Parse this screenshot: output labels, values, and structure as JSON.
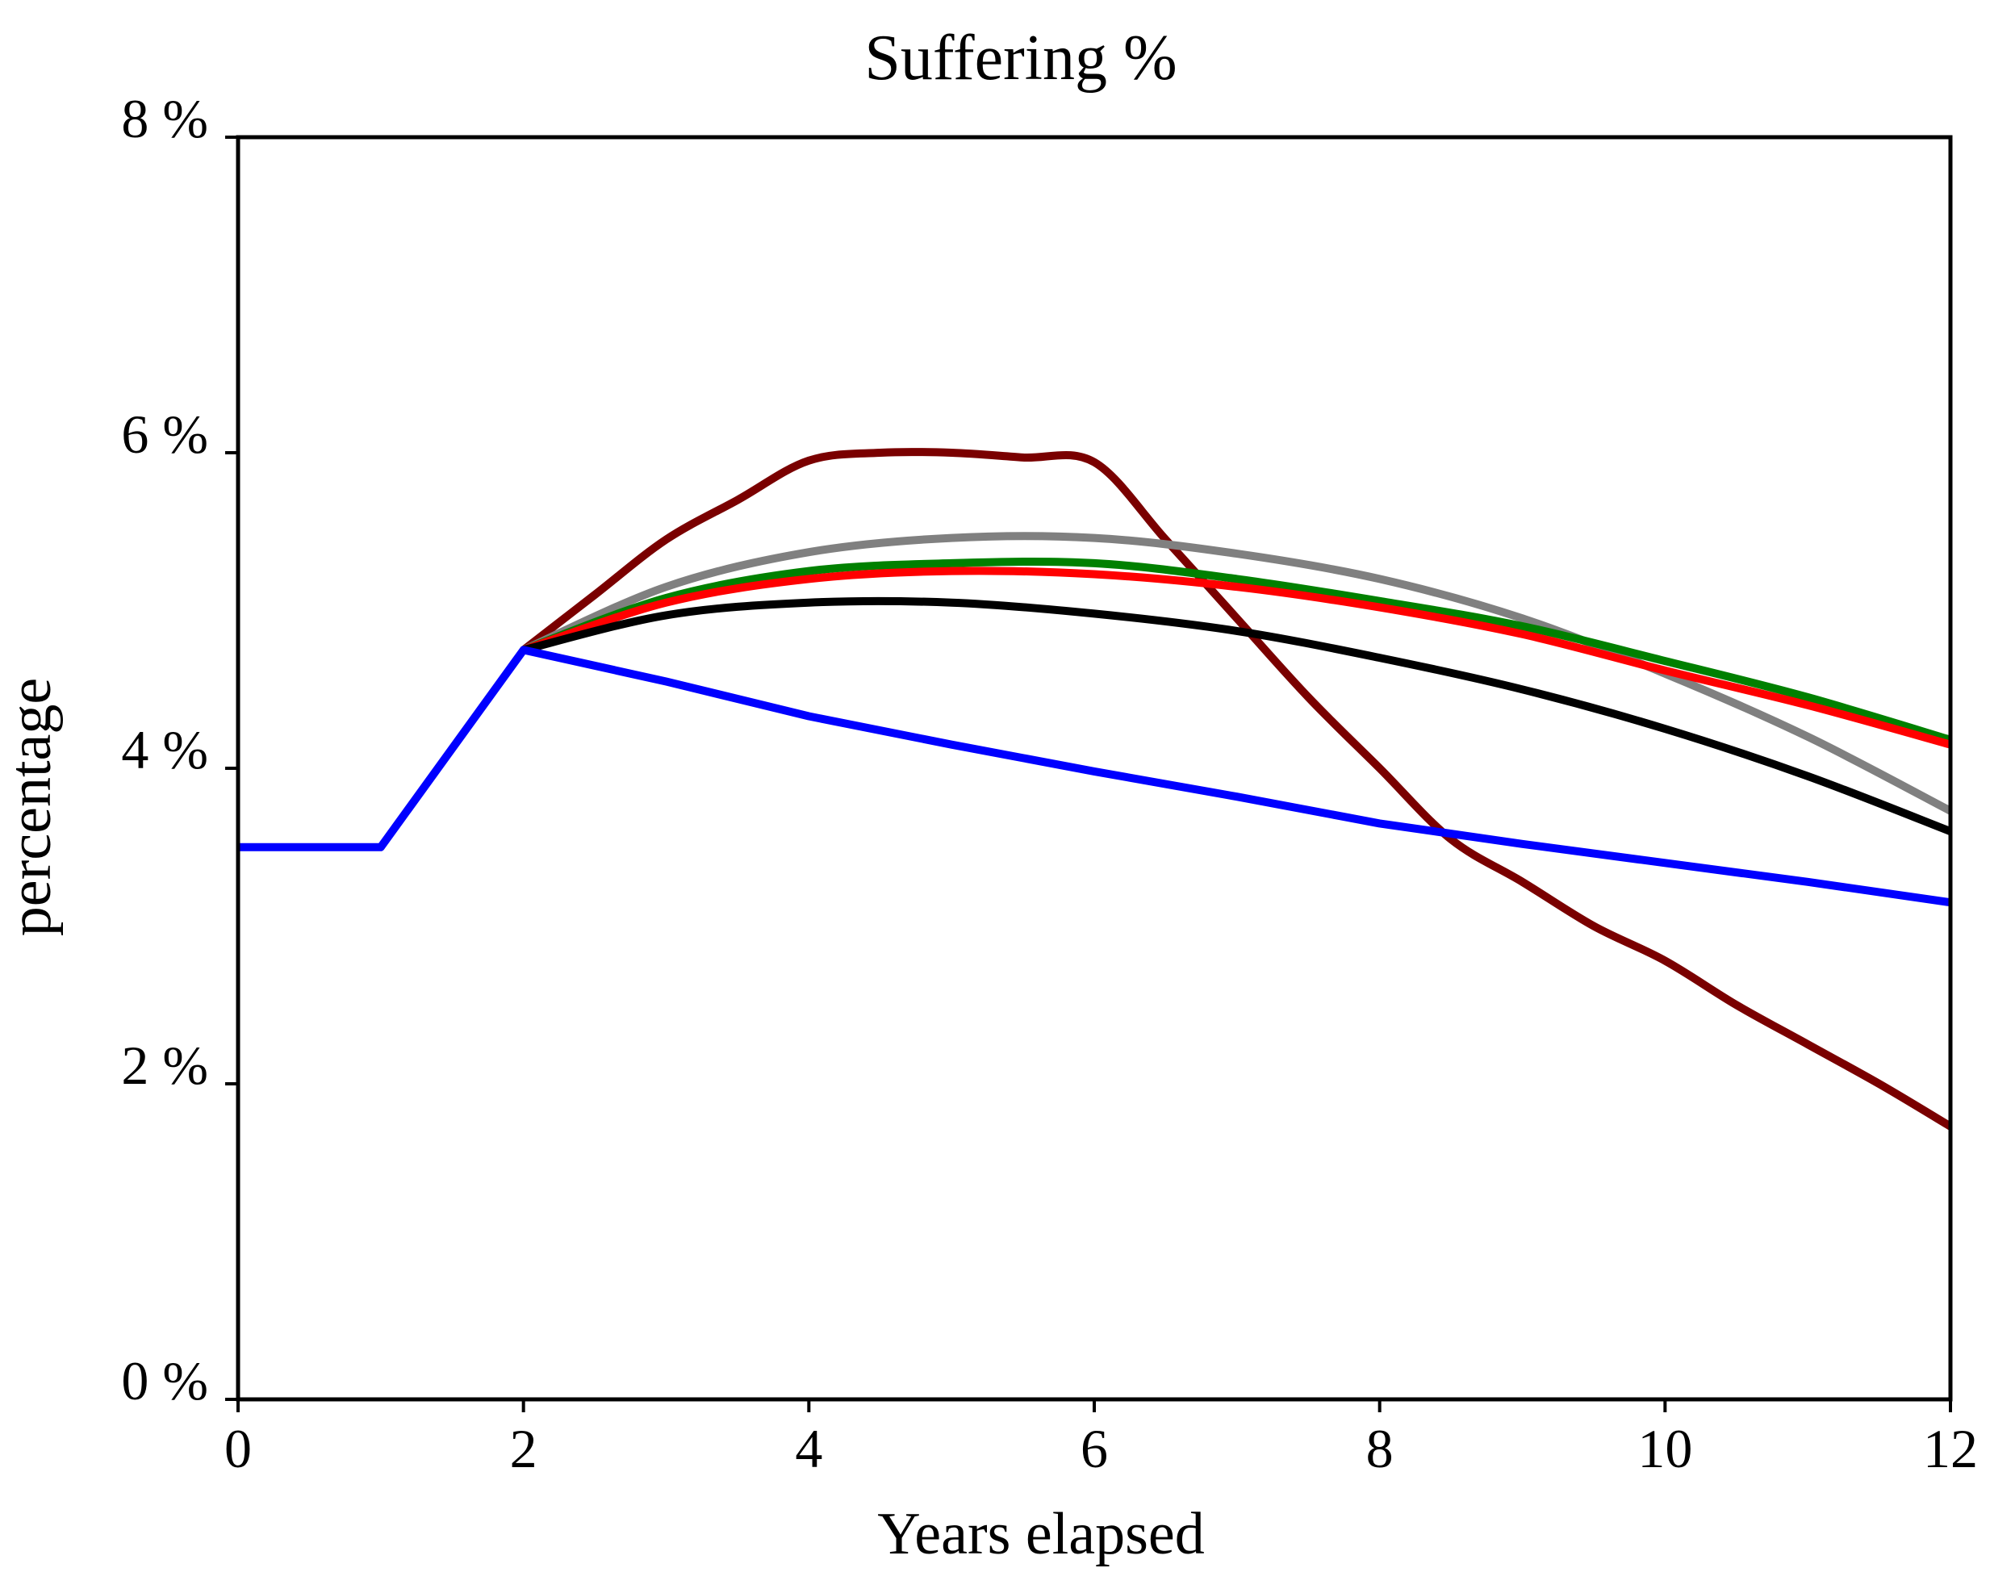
{
  "chart_data": {
    "type": "line",
    "title": "Suffering %",
    "xlabel": "Years elapsed",
    "ylabel": "percentage",
    "xlim": [
      0,
      12
    ],
    "ylim": [
      0,
      8
    ],
    "x_ticks": [
      {
        "value": 0,
        "label": "0"
      },
      {
        "value": 2,
        "label": "2"
      },
      {
        "value": 4,
        "label": "4"
      },
      {
        "value": 6,
        "label": "6"
      },
      {
        "value": 8,
        "label": "8"
      },
      {
        "value": 10,
        "label": "10"
      },
      {
        "value": 12,
        "label": "12"
      }
    ],
    "y_ticks": [
      {
        "value": 0,
        "label": "0 %"
      },
      {
        "value": 2,
        "label": "2 %"
      },
      {
        "value": 4,
        "label": "4 %"
      },
      {
        "value": 6,
        "label": "6 %"
      },
      {
        "value": 8,
        "label": "8 %"
      }
    ],
    "grid": false,
    "series": [
      {
        "name": "dark red",
        "color": "#7a0000",
        "points": [
          [
            2,
            4.75
          ],
          [
            2.5,
            5.1
          ],
          [
            3,
            5.45
          ],
          [
            3.5,
            5.7
          ],
          [
            4,
            5.95
          ],
          [
            4.5,
            6.0
          ],
          [
            5,
            6.0
          ],
          [
            5.5,
            5.97
          ],
          [
            6,
            5.94
          ],
          [
            6.5,
            5.45
          ],
          [
            7,
            4.95
          ],
          [
            7.5,
            4.45
          ],
          [
            8,
            4.0
          ],
          [
            8.5,
            3.55
          ],
          [
            9,
            3.28
          ],
          [
            9.5,
            3.0
          ],
          [
            10,
            2.78
          ],
          [
            10.5,
            2.5
          ],
          [
            11,
            2.25
          ],
          [
            11.5,
            2.0
          ],
          [
            12,
            1.73
          ]
        ]
      },
      {
        "name": "gray",
        "color": "#808080",
        "points": [
          [
            2,
            4.75
          ],
          [
            3,
            5.15
          ],
          [
            4,
            5.37
          ],
          [
            5,
            5.46
          ],
          [
            6,
            5.46
          ],
          [
            7,
            5.36
          ],
          [
            8,
            5.2
          ],
          [
            9,
            4.95
          ],
          [
            10,
            4.6
          ],
          [
            11,
            4.2
          ],
          [
            12,
            3.73
          ]
        ]
      },
      {
        "name": "green",
        "color": "#008000",
        "points": [
          [
            2,
            4.75
          ],
          [
            3,
            5.08
          ],
          [
            4,
            5.25
          ],
          [
            5,
            5.3
          ],
          [
            6,
            5.3
          ],
          [
            7,
            5.2
          ],
          [
            8,
            5.06
          ],
          [
            9,
            4.9
          ],
          [
            10,
            4.68
          ],
          [
            11,
            4.45
          ],
          [
            12,
            4.18
          ]
        ]
      },
      {
        "name": "red",
        "color": "#ff0000",
        "points": [
          [
            2,
            4.75
          ],
          [
            3,
            5.05
          ],
          [
            4,
            5.2
          ],
          [
            5,
            5.25
          ],
          [
            6,
            5.23
          ],
          [
            7,
            5.15
          ],
          [
            8,
            5.02
          ],
          [
            9,
            4.85
          ],
          [
            10,
            4.62
          ],
          [
            11,
            4.4
          ],
          [
            12,
            4.15
          ]
        ]
      },
      {
        "name": "black",
        "color": "#000000",
        "points": [
          [
            2,
            4.75
          ],
          [
            3,
            4.97
          ],
          [
            4,
            5.05
          ],
          [
            5,
            5.05
          ],
          [
            6,
            4.98
          ],
          [
            7,
            4.87
          ],
          [
            8,
            4.7
          ],
          [
            9,
            4.5
          ],
          [
            10,
            4.25
          ],
          [
            11,
            3.95
          ],
          [
            12,
            3.6
          ]
        ]
      },
      {
        "name": "blue",
        "color": "#0000ff",
        "points": [
          [
            0,
            3.5
          ],
          [
            1,
            3.5
          ],
          [
            2,
            4.75
          ],
          [
            3,
            4.55
          ],
          [
            4,
            4.33
          ],
          [
            5,
            4.15
          ],
          [
            6,
            3.98
          ],
          [
            7,
            3.82
          ],
          [
            8,
            3.65
          ],
          [
            9,
            3.52
          ],
          [
            10,
            3.4
          ],
          [
            11,
            3.28
          ],
          [
            12,
            3.15
          ]
        ]
      }
    ]
  }
}
